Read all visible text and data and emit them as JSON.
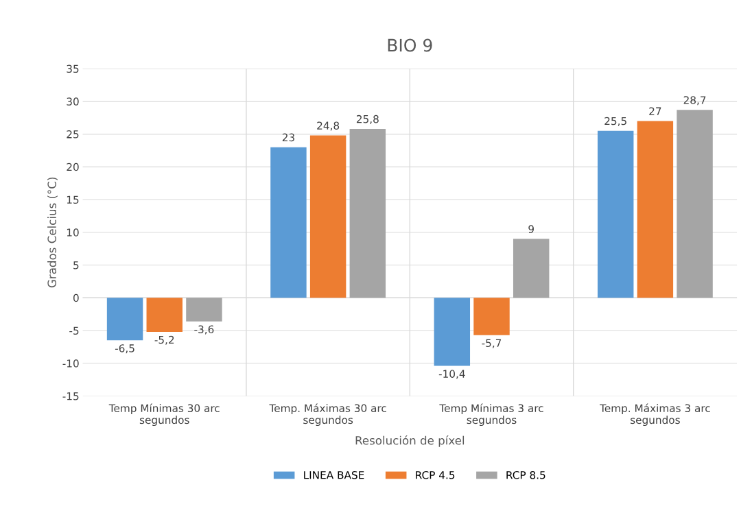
{
  "chart_data": {
    "type": "bar",
    "title": "BIO 9",
    "xlabel": "Resolución de píxel",
    "ylabel": "Grados Celcius (°C)",
    "categories": [
      "Temp Mínimas 30 arc segundos",
      "Temp. Máximas 30 arc segundos",
      "Temp Mínimas 3 arc segundos",
      "Temp. Máximas 3 arc segundos"
    ],
    "series": [
      {
        "name": "LINEA BASE",
        "color": "#5b9bd5",
        "values": [
          -6.5,
          23,
          -10.4,
          25.5
        ],
        "value_labels": [
          "-6,5",
          "23",
          "-10,4",
          "25,5"
        ]
      },
      {
        "name": "RCP 4.5",
        "color": "#ed7d31",
        "values": [
          -5.2,
          24.8,
          -5.7,
          27
        ],
        "value_labels": [
          "-5,2",
          "24,8",
          "-5,7",
          "27"
        ]
      },
      {
        "name": "RCP 8.5",
        "color": "#a5a5a5",
        "values": [
          -3.6,
          25.8,
          9,
          28.7
        ],
        "value_labels": [
          "-3,6",
          "25,8",
          "9",
          "28,7"
        ]
      }
    ],
    "ylim": [
      -15,
      35
    ],
    "yticks": [
      -15,
      -10,
      -5,
      0,
      5,
      10,
      15,
      20,
      25,
      30,
      35
    ],
    "grid": true,
    "legend": "bottom"
  }
}
